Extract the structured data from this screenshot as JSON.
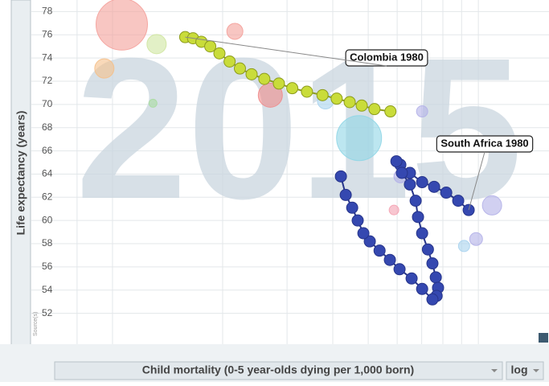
{
  "chart_data": {
    "type": "scatter",
    "watermark": "2015",
    "xlabel": "Child mortality (0-5 year-olds dying per 1,000 born)",
    "ylabel": "Life expectancy (years)",
    "xscale": "log",
    "scale_option": "log",
    "source_label": "Source(s)",
    "xlim": [
      6,
      156
    ],
    "ylim": [
      49.2,
      79
    ],
    "xticks": [
      8,
      10,
      20,
      30,
      40,
      50,
      60,
      70,
      80,
      90,
      100
    ],
    "yticks": [
      52,
      54,
      56,
      58,
      60,
      62,
      64,
      66,
      68,
      70,
      72,
      74,
      76,
      78
    ],
    "grid": true,
    "background": {
      "x": [
        10.6,
        9.5,
        13.2,
        21.6,
        27.0,
        47.2,
        38.2,
        109,
        70.2,
        98.6,
        58.8,
        12.9,
        91.4,
        61.2
      ],
      "values": [
        76.9,
        73.1,
        75.2,
        76.3,
        70.8,
        67.1,
        70.3,
        61.3,
        69.4,
        58.4,
        60.9,
        70.1,
        57.8,
        63.8
      ],
      "sizes": [
        32,
        12,
        12,
        10,
        15,
        28,
        10,
        12,
        7,
        8,
        6,
        5,
        7,
        8
      ],
      "colors": [
        "#f4a09a",
        "#f5c08a",
        "#cfe6a0",
        "#f4a09a",
        "#ef8a8a",
        "#8fd6e6",
        "#a9d3ee",
        "#b3b0e8",
        "#b3b0e8",
        "#b3b0e8",
        "#f4a0b0",
        "#a8dca0",
        "#a9d3ee",
        "#b3b0e8"
      ]
    },
    "series": [
      {
        "name": "Colombia 1980",
        "color": "#c9dc3a",
        "stroke": "#8d9c1d",
        "x": [
          15.8,
          16.6,
          17.5,
          18.5,
          19.6,
          20.9,
          22.3,
          24,
          26,
          28.5,
          31,
          34,
          37.5,
          41,
          44.5,
          48,
          52,
          57.5
        ],
        "values": [
          75.8,
          75.7,
          75.4,
          75.0,
          74.4,
          73.7,
          73.1,
          72.6,
          72.2,
          71.8,
          71.4,
          71.1,
          70.8,
          70.5,
          70.2,
          69.9,
          69.6,
          69.4
        ]
      },
      {
        "name": "South Africa 1980",
        "color": "#3548b0",
        "stroke": "#27358a",
        "x": [
          94.1,
          88.1,
          81.7,
          75.7,
          70.2,
          65.0,
          61.2,
          59.7,
          61.8,
          65.0,
          67.4,
          68.4,
          70.2,
          72.8,
          74.9,
          76.5,
          77.6,
          76.9,
          74.9,
          70.2,
          65.7,
          60.9,
          57.3,
          53.7,
          50.5,
          48.5,
          46.8,
          45.2,
          43.4,
          42.1
        ],
        "values": [
          60.9,
          61.7,
          62.4,
          62.9,
          63.3,
          64.1,
          64.8,
          65.1,
          64.1,
          63.1,
          61.7,
          60.3,
          58.9,
          57.5,
          56.3,
          55.1,
          54.2,
          53.5,
          53.2,
          54.1,
          55.0,
          55.8,
          56.6,
          57.4,
          58.2,
          58.9,
          60.0,
          61.1,
          62.2,
          63.8
        ]
      }
    ]
  }
}
